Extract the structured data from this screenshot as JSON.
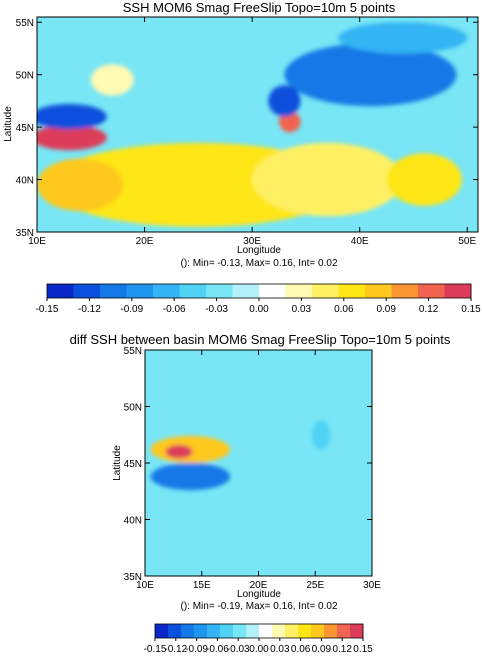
{
  "panels": [
    {
      "title": "SSH MOM6 Smag FreeSlip Topo=10m 5 points",
      "xlabel": "Longitude",
      "ylabel": "Latitude",
      "stats": "(): Min= -0.13, Max= 0.16, Int= 0.02"
    },
    {
      "title": "diff SSH between basin MOM6 Smag FreeSlip Topo=10m 5 points",
      "xlabel": "Longitude",
      "ylabel": "Latitude",
      "stats": "(): Min= -0.19, Max= 0.16, Int= 0.02"
    }
  ],
  "colors": {
    "levels": [
      "#0a28c8",
      "#0a50dc",
      "#1478e6",
      "#1e96f0",
      "#32b4f5",
      "#50d2f5",
      "#78e6f5",
      "#b4f0fa",
      "#ffffff",
      "#fffab4",
      "#fff064",
      "#ffe614",
      "#ffc81e",
      "#fa9632",
      "#f06450",
      "#dc3c5a"
    ]
  },
  "chart_data": [
    {
      "type": "heatmap",
      "title": "SSH MOM6 Smag FreeSlip Topo=10m 5 points",
      "xlabel": "Longitude",
      "ylabel": "Latitude",
      "x_ticks": [
        {
          "v": 10,
          "label": "10E"
        },
        {
          "v": 20,
          "label": "20E"
        },
        {
          "v": 30,
          "label": "30E"
        },
        {
          "v": 40,
          "label": "40E"
        },
        {
          "v": 50,
          "label": "50E"
        }
      ],
      "y_ticks": [
        {
          "v": 35,
          "label": "35N"
        },
        {
          "v": 40,
          "label": "40N"
        },
        {
          "v": 45,
          "label": "45N"
        },
        {
          "v": 50,
          "label": "50N"
        },
        {
          "v": 55,
          "label": "55N"
        }
      ],
      "xlim": [
        10,
        51
      ],
      "ylim": [
        35,
        55.5
      ],
      "colorbar": {
        "min": -0.15,
        "max": 0.15,
        "interval": 0.02,
        "tick_labels": [
          "-0.15",
          "-0.12",
          "-0.09",
          "-0.06",
          "-0.03",
          "0.00",
          "0.03",
          "0.06",
          "0.09",
          "0.12",
          "0.15"
        ]
      },
      "stats": {
        "min": -0.13,
        "max": 0.16,
        "interval": 0.02
      },
      "background": -0.03,
      "features": [
        {
          "lon": 25,
          "lat": 39.5,
          "rx": 14,
          "ry": 4,
          "value": 0.07
        },
        {
          "lon": 14,
          "lat": 39.5,
          "rx": 4,
          "ry": 2.5,
          "value": 0.08
        },
        {
          "lon": 37,
          "lat": 40,
          "rx": 7,
          "ry": 3.5,
          "value": 0.05
        },
        {
          "lon": 46,
          "lat": 40,
          "rx": 3.5,
          "ry": 2.5,
          "value": 0.06
        },
        {
          "lon": 13,
          "lat": 44,
          "rx": 3.5,
          "ry": 1.2,
          "value": 0.14
        },
        {
          "lon": 13,
          "lat": 46,
          "rx": 3.5,
          "ry": 1.2,
          "value": -0.13
        },
        {
          "lon": 41,
          "lat": 50,
          "rx": 8,
          "ry": 3,
          "value": -0.11
        },
        {
          "lon": 33.5,
          "lat": 45.5,
          "rx": 1,
          "ry": 1,
          "value": 0.12
        },
        {
          "lon": 33,
          "lat": 47.5,
          "rx": 1.5,
          "ry": 1.5,
          "value": -0.13
        },
        {
          "lon": 17,
          "lat": 49.5,
          "rx": 2,
          "ry": 1.5,
          "value": 0.02
        },
        {
          "lon": 44,
          "lat": 53.5,
          "rx": 6,
          "ry": 1.5,
          "value": -0.06
        }
      ]
    },
    {
      "type": "heatmap",
      "title": "diff SSH between basin MOM6 Smag FreeSlip Topo=10m 5 points",
      "xlabel": "Longitude",
      "ylabel": "Latitude",
      "x_ticks": [
        {
          "v": 10,
          "label": "10E"
        },
        {
          "v": 15,
          "label": "15E"
        },
        {
          "v": 20,
          "label": "20E"
        },
        {
          "v": 25,
          "label": "25E"
        },
        {
          "v": 30,
          "label": "30E"
        }
      ],
      "y_ticks": [
        {
          "v": 35,
          "label": "35N"
        },
        {
          "v": 40,
          "label": "40N"
        },
        {
          "v": 45,
          "label": "45N"
        },
        {
          "v": 50,
          "label": "50N"
        },
        {
          "v": 55,
          "label": "55N"
        }
      ],
      "xlim": [
        10,
        30
      ],
      "ylim": [
        35,
        55
      ],
      "colorbar": {
        "min": -0.15,
        "max": 0.15,
        "interval": 0.02,
        "tick_labels": [
          "-0.15",
          "-0.12",
          "-0.09",
          "-0.06",
          "-0.03",
          "0.00",
          "0.03",
          "0.06",
          "0.09",
          "0.12",
          "0.15"
        ]
      },
      "stats": {
        "min": -0.19,
        "max": 0.16,
        "interval": 0.02
      },
      "background": -0.03,
      "features": [
        {
          "lon": 14,
          "lat": 46.2,
          "rx": 3.5,
          "ry": 1.2,
          "value": 0.08
        },
        {
          "lon": 13,
          "lat": 46.0,
          "rx": 1.2,
          "ry": 0.6,
          "value": 0.14
        },
        {
          "lon": 14,
          "lat": 43.8,
          "rx": 3.5,
          "ry": 1.2,
          "value": -0.11
        },
        {
          "lon": 25.5,
          "lat": 47.5,
          "rx": 0.8,
          "ry": 1.3,
          "value": -0.05
        }
      ]
    }
  ]
}
